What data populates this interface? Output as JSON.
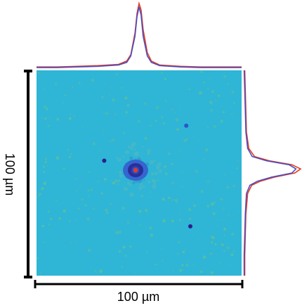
{
  "chart_data": {
    "type": "heatmap",
    "title": "",
    "xlabel": "",
    "ylabel": "",
    "scale_bar_x": "100 µm",
    "scale_bar_y": "100 µm",
    "xlim": [
      0,
      100
    ],
    "ylim": [
      0,
      100
    ],
    "grid": false,
    "colormap": [
      "#2e1d8c",
      "#2b55c9",
      "#2fb5d6",
      "#63c36f",
      "#f6d32c",
      "#e53a1e"
    ],
    "background_level": 0.45,
    "central_peak": {
      "x": 50,
      "y": 50,
      "level": 1.0
    },
    "bright_spots": [
      {
        "x": 33,
        "y": 44,
        "level": 0.05
      },
      {
        "x": 75,
        "y": 76,
        "level": 0.05
      },
      {
        "x": 73,
        "y": 27,
        "level": 0.1
      }
    ],
    "profiles": {
      "horizontal": {
        "axis": "x",
        "series": [
          {
            "color": "#e53a1e",
            "x": [
              0,
              10,
              20,
              30,
              40,
              44,
              46,
              48,
              49,
              50,
              51,
              52,
              54,
              56,
              60,
              70,
              80,
              90,
              100
            ],
            "values": [
              0.03,
              0.03,
              0.04,
              0.05,
              0.07,
              0.12,
              0.22,
              0.55,
              0.85,
              1.0,
              0.9,
              0.6,
              0.25,
              0.12,
              0.06,
              0.04,
              0.03,
              0.03,
              0.03
            ]
          },
          {
            "color": "#4a4fc7",
            "x": [
              0,
              10,
              20,
              30,
              40,
              44,
              46,
              48,
              49,
              50,
              51,
              52,
              54,
              56,
              60,
              70,
              80,
              90,
              100
            ],
            "values": [
              0.02,
              0.02,
              0.03,
              0.04,
              0.06,
              0.1,
              0.2,
              0.5,
              0.8,
              0.95,
              0.82,
              0.5,
              0.2,
              0.1,
              0.05,
              0.03,
              0.02,
              0.02,
              0.02
            ]
          }
        ]
      },
      "vertical": {
        "axis": "y",
        "series": [
          {
            "color": "#e53a1e",
            "y": [
              0,
              10,
              20,
              30,
              38,
              42,
              44,
              46,
              48,
              50,
              52,
              54,
              56,
              60,
              70,
              80,
              90,
              100
            ],
            "values": [
              0.03,
              0.04,
              0.05,
              0.06,
              0.1,
              0.2,
              0.45,
              0.85,
              1.0,
              0.9,
              0.55,
              0.3,
              0.15,
              0.08,
              0.05,
              0.04,
              0.03,
              0.03
            ]
          },
          {
            "color": "#4a4fc7",
            "y": [
              0,
              10,
              20,
              30,
              38,
              42,
              44,
              46,
              48,
              50,
              52,
              54,
              56,
              60,
              70,
              80,
              90,
              100
            ],
            "values": [
              0.02,
              0.03,
              0.04,
              0.05,
              0.08,
              0.16,
              0.4,
              0.8,
              0.92,
              0.85,
              0.5,
              0.25,
              0.12,
              0.06,
              0.04,
              0.03,
              0.02,
              0.02
            ]
          }
        ]
      }
    }
  }
}
